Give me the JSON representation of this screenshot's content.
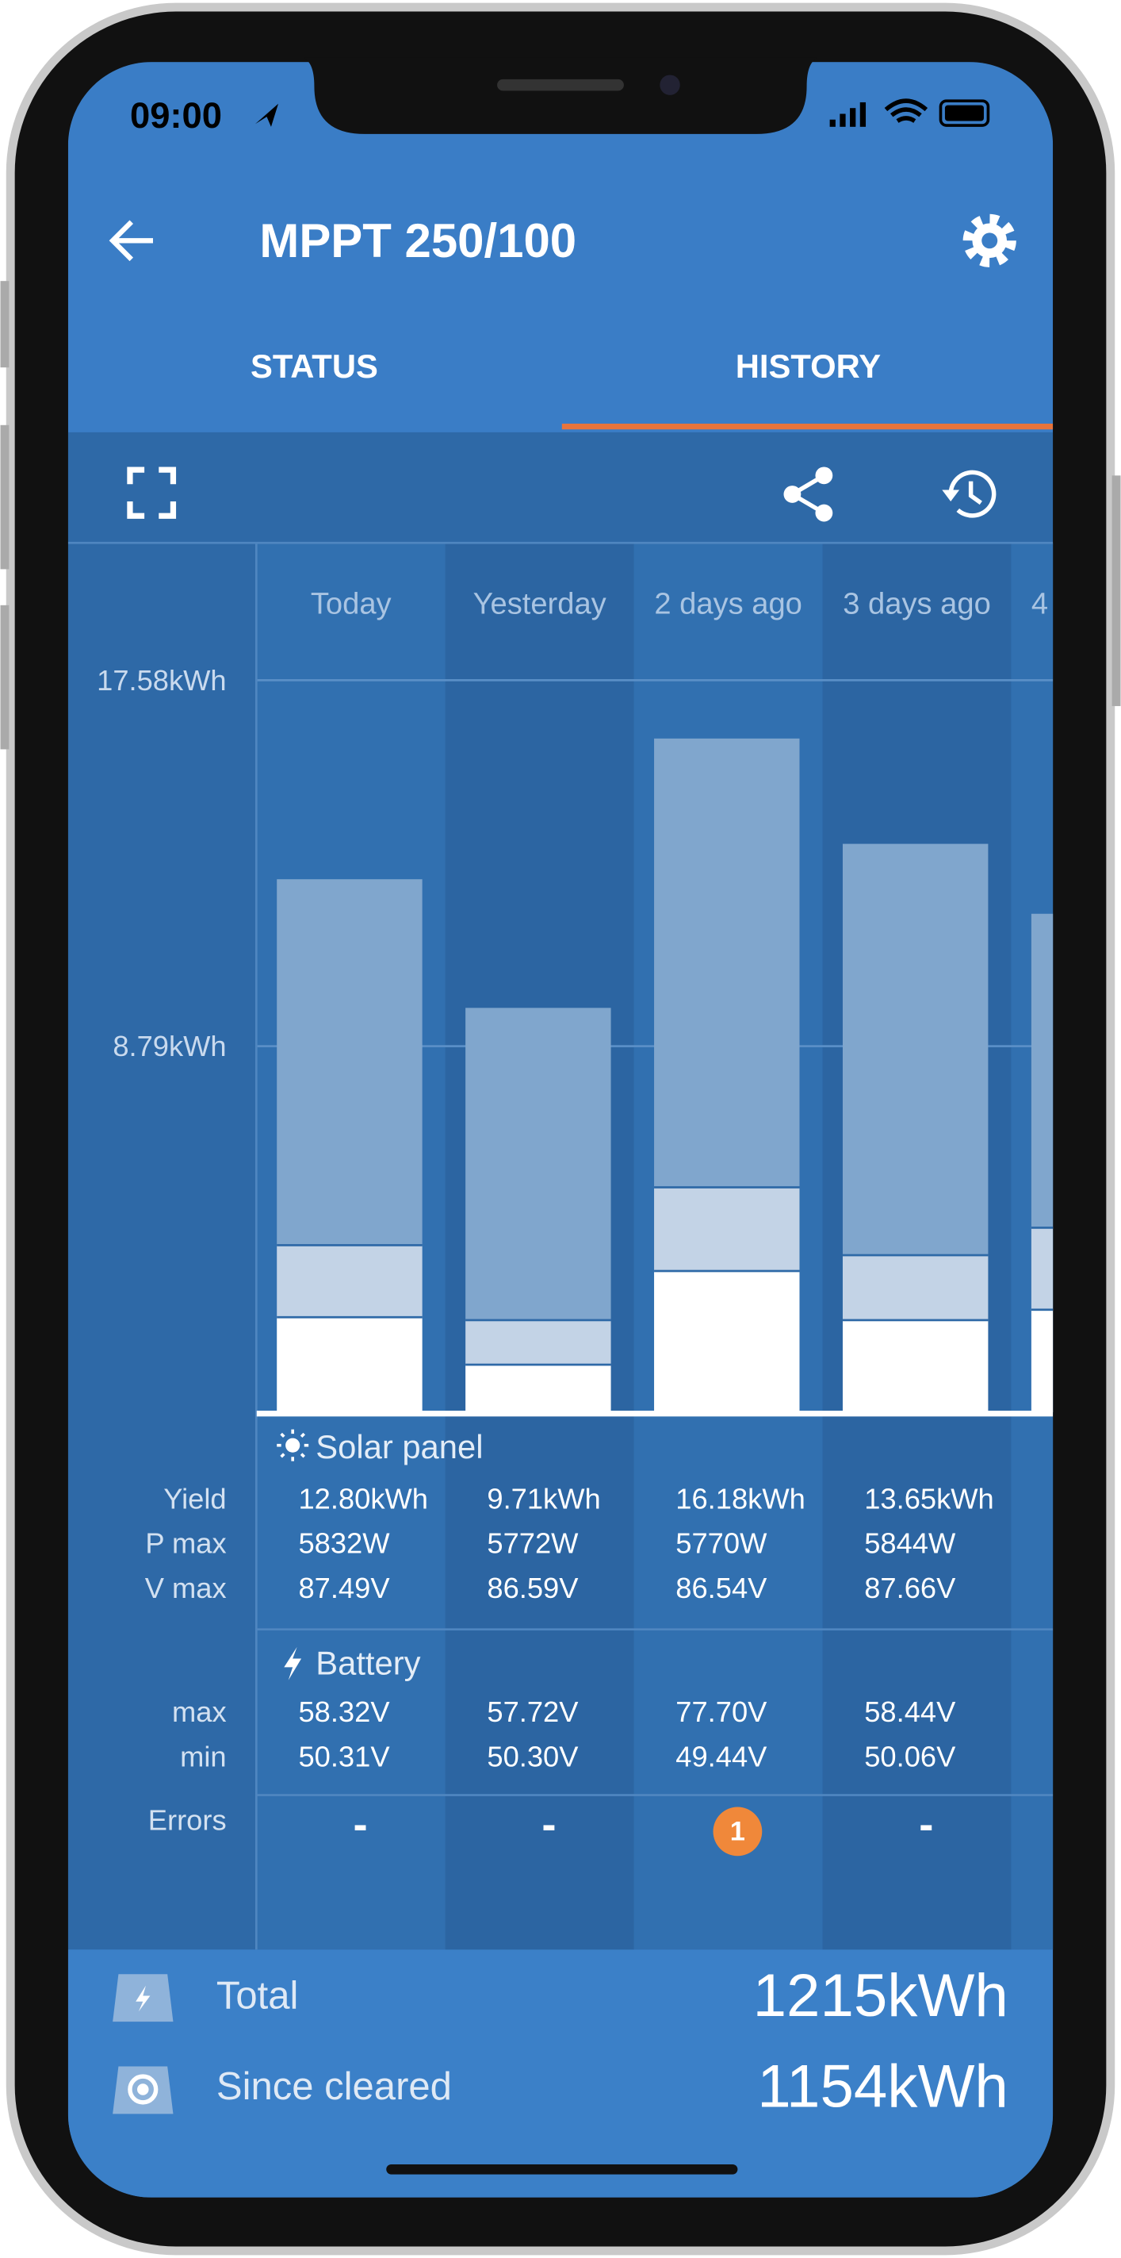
{
  "status_bar": {
    "time": "09:00"
  },
  "header": {
    "title": "MPPT 250/100"
  },
  "tabs": [
    "STATUS",
    "HISTORY"
  ],
  "chart_data": {
    "type": "bar",
    "stacked": true,
    "categories": [
      "Today",
      "Yesterday",
      "2 days ago",
      "3 days ago",
      "4"
    ],
    "series": [
      {
        "color": "#ffffff",
        "values": [
          2.28,
          1.14,
          3.39,
          2.21,
          2.46
        ]
      },
      {
        "color": "#c3d3e6",
        "values": [
          1.73,
          1.07,
          2.01,
          1.56,
          1.97
        ]
      },
      {
        "color": "#80a6cd",
        "values": [
          8.79,
          7.5,
          10.78,
          9.88,
          7.54
        ]
      }
    ],
    "ylim": [
      0,
      20.87
    ],
    "yticks": [
      {
        "value": 8.79,
        "label": "8.79kWh"
      },
      {
        "value": 17.58,
        "label": "17.58kWh"
      }
    ],
    "grid": true
  },
  "table": {
    "solar_panel": {
      "title": "Solar panel",
      "rows": [
        {
          "label": "Yield",
          "values": [
            "12.80kWh",
            "9.71kWh",
            "16.18kWh",
            "13.65kWh"
          ]
        },
        {
          "label": "P max",
          "values": [
            "5832W",
            "5772W",
            "5770W",
            "5844W"
          ]
        },
        {
          "label": "V max",
          "values": [
            "87.49V",
            "86.59V",
            "86.54V",
            "87.66V"
          ]
        }
      ]
    },
    "battery": {
      "title": "Battery",
      "rows": [
        {
          "label": "max",
          "values": [
            "58.32V",
            "57.72V",
            "77.70V",
            "58.44V"
          ]
        },
        {
          "label": "min",
          "values": [
            "50.31V",
            "50.30V",
            "49.44V",
            "50.06V"
          ]
        }
      ]
    },
    "errors": {
      "label": "Errors",
      "values": [
        "-",
        "-",
        "1",
        "-"
      ]
    }
  },
  "totals": [
    {
      "label": "Total",
      "value": "1215kWh"
    },
    {
      "label": "Since cleared",
      "value": "1154kWh"
    }
  ]
}
